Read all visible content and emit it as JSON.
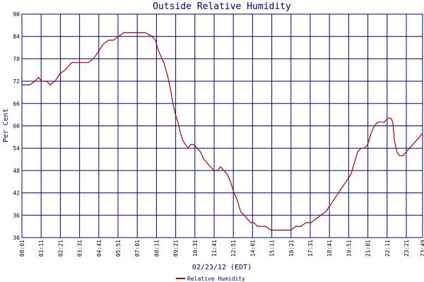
{
  "chart_data": {
    "type": "line",
    "title": "Outside Relative Humidity",
    "xlabel": "02/23/12 (EDT)",
    "ylabel": "Per Cent",
    "ylim": [
      30,
      90
    ],
    "xlim_hours": [
      0.0167,
      23.983
    ],
    "yticks": [
      30,
      36,
      42,
      48,
      54,
      60,
      66,
      72,
      78,
      84,
      90
    ],
    "xtick_labels": [
      "00:01",
      "01:11",
      "02:21",
      "03:31",
      "04:41",
      "05:51",
      "07:01",
      "08:11",
      "09:21",
      "10:31",
      "11:41",
      "12:51",
      "14:01",
      "15:11",
      "16:21",
      "17:31",
      "18:41",
      "19:51",
      "21:01",
      "22:11",
      "23:21",
      "23:49"
    ],
    "grid": true,
    "legend_position": "bottom-center",
    "colors": {
      "series": "#aa0000",
      "grid": "#000080",
      "text": "#000080",
      "background": "#ffffff"
    },
    "series": [
      {
        "name": "Relative Humidity",
        "x": [
          0.0167,
          0.5,
          0.8,
          1.0,
          1.2,
          1.5,
          1.7,
          2.0,
          2.3,
          2.6,
          2.8,
          3.0,
          3.3,
          3.6,
          4.0,
          4.3,
          4.6,
          4.9,
          5.2,
          5.5,
          5.8,
          6.1,
          6.4,
          6.8,
          7.1,
          7.4,
          7.8,
          8.0,
          8.2,
          8.5,
          8.7,
          8.9,
          9.05,
          9.2,
          9.35,
          9.5,
          9.65,
          9.8,
          9.95,
          10.1,
          10.3,
          10.5,
          10.7,
          10.9,
          11.1,
          11.3,
          11.5,
          11.7,
          11.9,
          12.1,
          12.3,
          12.5,
          12.7,
          12.9,
          13.1,
          13.3,
          13.5,
          13.7,
          13.9,
          14.1,
          14.3,
          14.6,
          14.9,
          15.2,
          15.5,
          15.8,
          16.1,
          16.4,
          16.7,
          17.0,
          17.3,
          17.6,
          17.9,
          18.2,
          18.5,
          18.8,
          19.1,
          19.4,
          19.7,
          19.9,
          20.1,
          20.3,
          20.5,
          20.7,
          20.9,
          21.1,
          21.3,
          21.5,
          21.7,
          21.9,
          22.1,
          22.2,
          22.3,
          22.45,
          22.6,
          22.8,
          23.0,
          23.2,
          23.4,
          23.6,
          23.8,
          23.98
        ],
        "y": [
          71,
          71,
          72,
          73,
          72,
          72,
          71,
          72,
          74,
          75,
          76,
          77,
          77,
          77,
          77,
          78,
          80,
          82,
          83,
          83,
          84,
          85,
          85,
          85,
          85,
          85,
          84,
          83,
          80,
          77,
          74,
          70,
          66,
          63,
          61,
          58,
          56,
          55,
          54,
          55,
          55,
          54,
          53,
          51,
          50,
          49,
          48,
          48,
          49,
          48,
          47,
          45,
          42,
          40,
          37,
          36,
          35,
          34,
          34,
          33,
          33,
          33,
          32,
          32,
          32,
          32,
          32,
          33,
          33,
          34,
          34,
          35,
          36,
          37,
          39,
          41,
          43,
          45,
          47,
          50,
          53,
          54,
          54,
          55,
          58,
          60,
          61,
          61,
          61,
          62,
          62,
          61,
          56,
          53,
          52,
          52,
          53,
          54,
          55,
          56,
          57,
          58
        ]
      }
    ]
  }
}
